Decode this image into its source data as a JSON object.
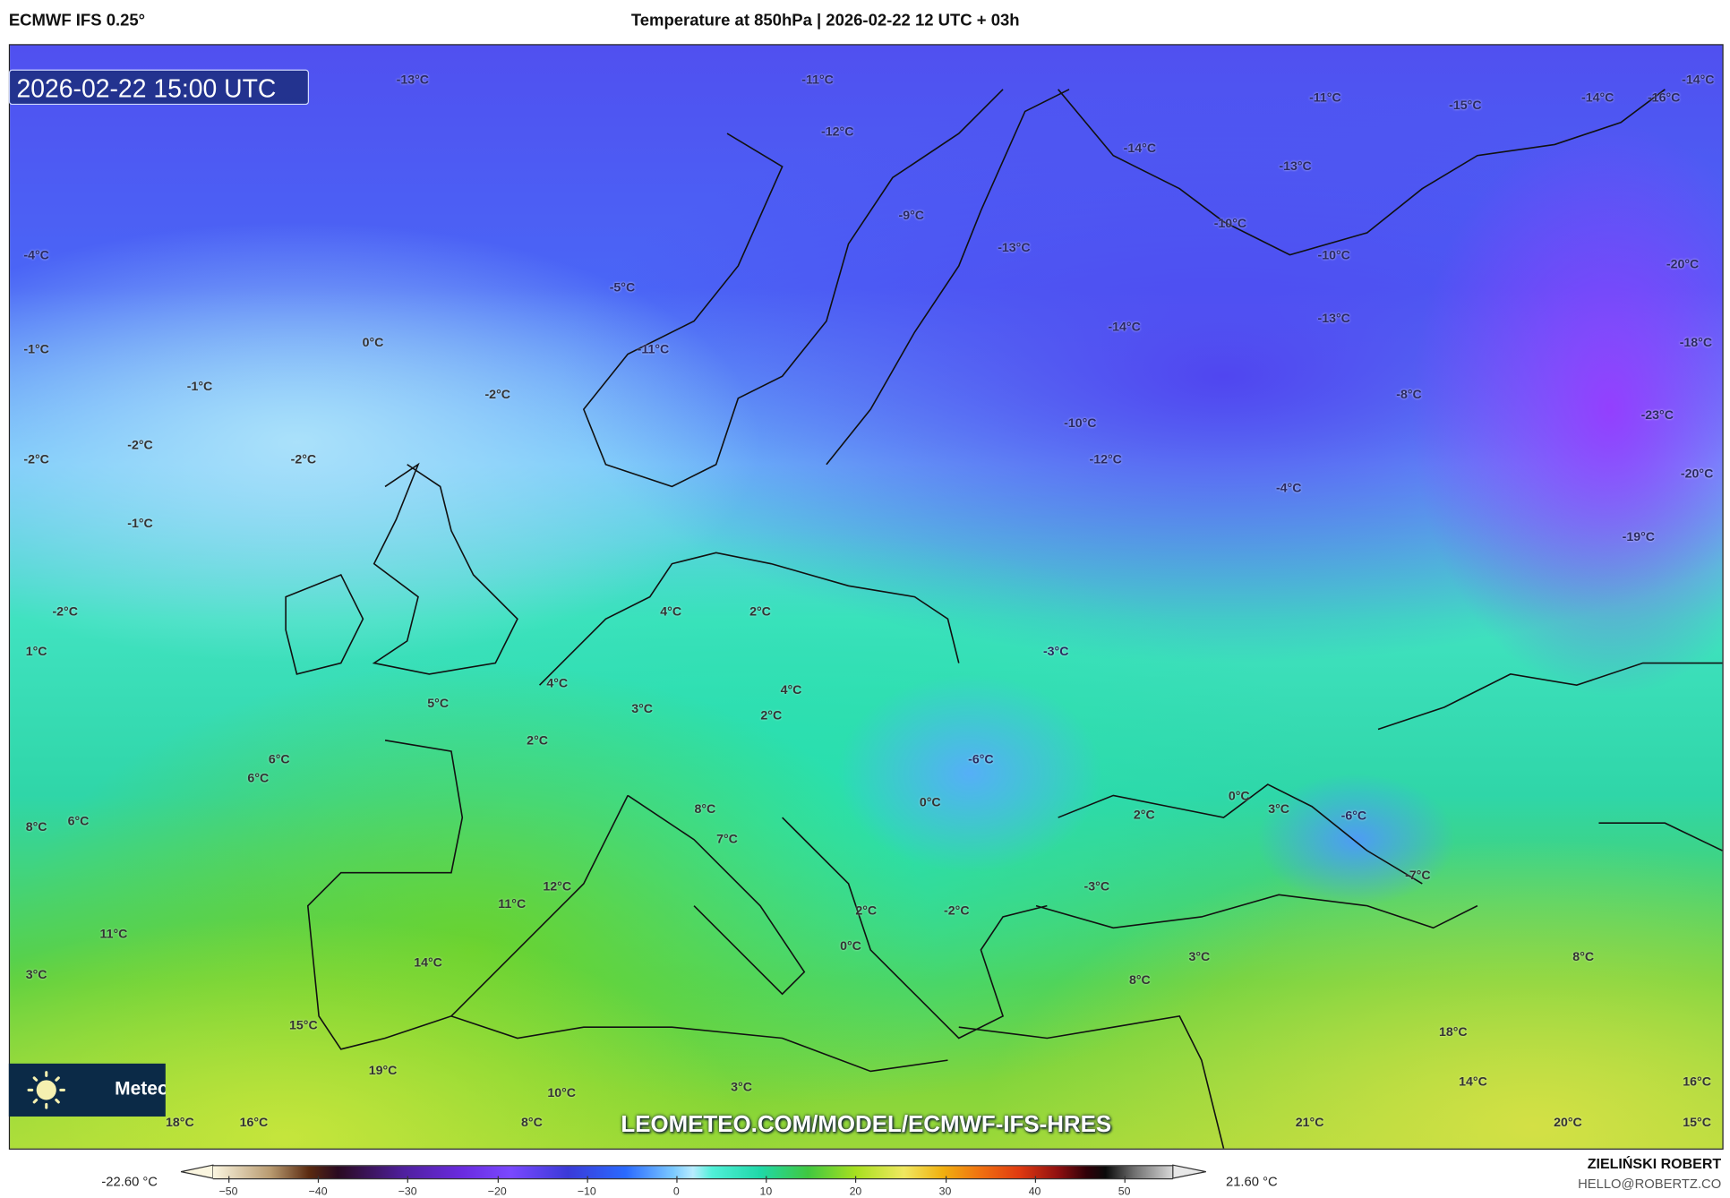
{
  "header": {
    "model": "ECMWF IFS 0.25°",
    "title": "Temperature at 850hPa | 2026-02-22 12 UTC + 03h"
  },
  "map": {
    "valid_time": "2026-02-22 15:00 UTC",
    "watermark": "LEOMETEO.COM/MODEL/ECMWF-IFS-HRES",
    "widget_text": "Meteo",
    "labels": [
      "-13°C",
      "-11°C",
      "-12°C",
      "-11°C",
      "-15°C",
      "-14°C",
      "-16°C",
      "-14°C",
      "-14°C",
      "-13°C",
      "-9°C",
      "-10°C",
      "-13°C",
      "-10°C",
      "-20°C",
      "-4°C",
      "-5°C",
      "-14°C",
      "-13°C",
      "-18°C",
      "0°C",
      "-1°C",
      "-11°C",
      "-1°C",
      "-2°C",
      "-8°C",
      "-10°C",
      "-23°C",
      "-2°C",
      "-2°C",
      "-2°C",
      "-12°C",
      "-20°C",
      "-4°C",
      "-1°C",
      "-19°C",
      "-2°C",
      "4°C",
      "2°C",
      "1°C",
      "-3°C",
      "4°C",
      "4°C",
      "5°C",
      "3°C",
      "2°C",
      "2°C",
      "-6°C",
      "6°C",
      "6°C",
      "0°C",
      "0°C",
      "3°C",
      "2°C",
      "-6°C",
      "8°C",
      "6°C",
      "8°C",
      "7°C",
      "-7°C",
      "-3°C",
      "12°C",
      "11°C",
      "2°C",
      "-2°C",
      "11°C",
      "0°C",
      "3°C",
      "8°C",
      "14°C",
      "3°C",
      "8°C",
      "15°C",
      "18°C",
      "19°C",
      "14°C",
      "16°C",
      "3°C",
      "10°C",
      "18°C",
      "16°C",
      "8°C",
      "21°C",
      "20°C",
      "15°C"
    ]
  },
  "colorbar": {
    "min_label": "-22.60 °C",
    "max_label": "21.60 °C",
    "ticks": [
      "−50",
      "−40",
      "−30",
      "−20",
      "−10",
      "0",
      "10",
      "20",
      "30",
      "40",
      "50"
    ]
  },
  "credits": {
    "author": "ZIELIŃSKI ROBERT",
    "email": "HELLO@ROBERTZ.CO"
  }
}
